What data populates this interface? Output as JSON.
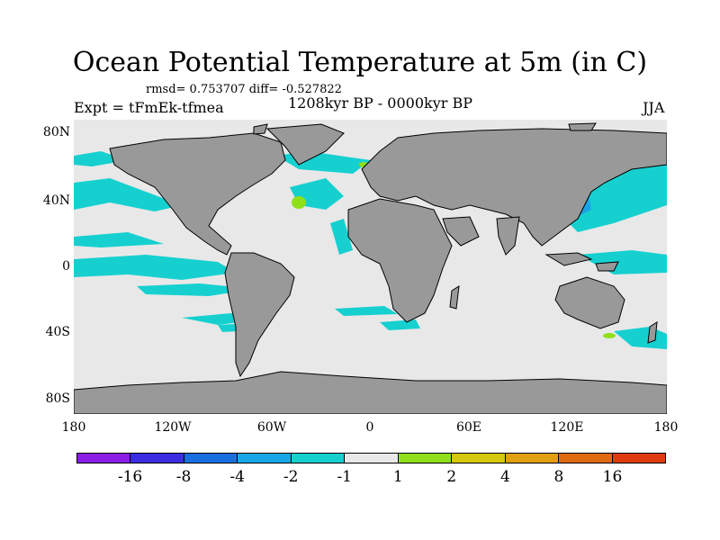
{
  "title": "Ocean Potential Temperature at 5m (in C)",
  "stats": "rmsd= 0.753707 diff= -0.527822",
  "expt": "Expt = tFmEk-tfmea",
  "period": "1208kyr BP - 0000kyr BP",
  "season": "JJA",
  "y_axis": {
    "labels": [
      "80N",
      "40N",
      "0",
      "40S",
      "80S"
    ]
  },
  "x_axis": {
    "labels": [
      "180",
      "120W",
      "60W",
      "0",
      "60E",
      "120E",
      "180"
    ]
  },
  "colorbar": {
    "colors": [
      "#8c1de6",
      "#3a2ee0",
      "#1a6fe0",
      "#19a6e6",
      "#16d0d0",
      "#e8e8e8",
      "#8fe01a",
      "#d6c80e",
      "#e0a010",
      "#e06a10",
      "#e03a10"
    ],
    "labels": [
      "-16",
      "-8",
      "-4",
      "-2",
      "-1",
      "1",
      "2",
      "4",
      "8",
      "16"
    ]
  },
  "map_colors": {
    "ocean": "#e8e8e8",
    "land": "#999999",
    "anomaly_neg1": "#16d0d0",
    "anomaly_neg2": "#19a6e6",
    "anomaly_neg4": "#1a6fe0",
    "anomaly_pos1": "#8fe01a",
    "coast": "#000000"
  }
}
